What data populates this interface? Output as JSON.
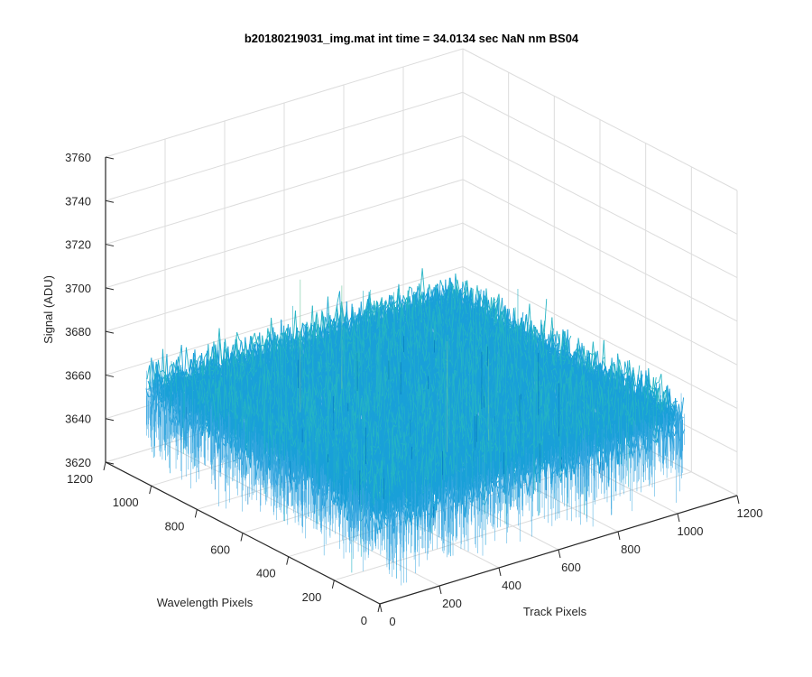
{
  "chart_data": {
    "type": "surface",
    "title": "b20180219031_img.mat int time = 34.0134 sec  NaN nm BS04",
    "xlabel": "Track Pixels",
    "ylabel": "Wavelength Pixels",
    "zlabel": "Signal (ADU)",
    "xlim": [
      0,
      1200
    ],
    "ylim": [
      0,
      1200
    ],
    "zlim": [
      3620,
      3760
    ],
    "xticks": [
      "0",
      "200",
      "400",
      "600",
      "800",
      "1000",
      "1200"
    ],
    "yticks": [
      "0",
      "200",
      "400",
      "600",
      "800",
      "1000",
      "1200"
    ],
    "zticks": [
      "3620",
      "3640",
      "3660",
      "3680",
      "3700",
      "3720",
      "3740",
      "3760"
    ],
    "grid": true,
    "surface": {
      "x_range": [
        1,
        1024
      ],
      "y_range": [
        1,
        1024
      ],
      "mean": 3663,
      "noise_std": 10,
      "min_approx": 3625,
      "max_approx": 3735,
      "colormap": [
        "#0072bd",
        "#1aa0d8",
        "#25b4c4",
        "#6fc8a0",
        "#d6d94a"
      ]
    }
  }
}
